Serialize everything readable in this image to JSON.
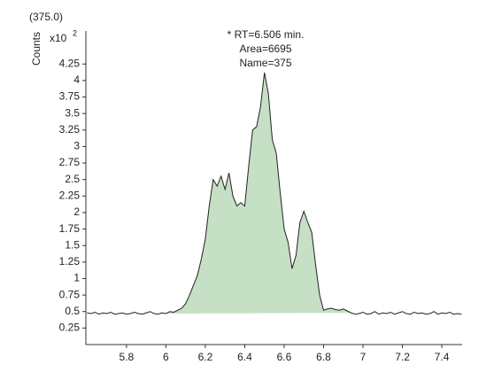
{
  "chart_data": {
    "type": "line",
    "header": "(375.0)",
    "y_label": "Counts",
    "y_multiplier": "x10",
    "y_exponent": "2",
    "annotation": [
      "* RT=6.506 min.",
      "Area=6695",
      "Name=375"
    ],
    "x": [
      5.6,
      5.62,
      5.64,
      5.66,
      5.68,
      5.7,
      5.72,
      5.74,
      5.76,
      5.78,
      5.8,
      5.82,
      5.84,
      5.86,
      5.88,
      5.9,
      5.92,
      5.94,
      5.96,
      5.98,
      6.0,
      6.02,
      6.04,
      6.06,
      6.08,
      6.1,
      6.12,
      6.14,
      6.16,
      6.18,
      6.2,
      6.22,
      6.24,
      6.26,
      6.28,
      6.3,
      6.32,
      6.34,
      6.36,
      6.38,
      6.4,
      6.42,
      6.44,
      6.46,
      6.48,
      6.5,
      6.52,
      6.54,
      6.56,
      6.58,
      6.6,
      6.62,
      6.64,
      6.66,
      6.68,
      6.7,
      6.72,
      6.74,
      6.76,
      6.78,
      6.8,
      6.82,
      6.84,
      6.86,
      6.88,
      6.9,
      6.92,
      6.94,
      6.96,
      6.98,
      7.0,
      7.02,
      7.04,
      7.06,
      7.08,
      7.1,
      7.12,
      7.14,
      7.16,
      7.18,
      7.2,
      7.22,
      7.24,
      7.26,
      7.28,
      7.3,
      7.32,
      7.34,
      7.36,
      7.38,
      7.4,
      7.42,
      7.44,
      7.46,
      7.48,
      7.5
    ],
    "values": [
      0.48,
      0.47,
      0.49,
      0.46,
      0.48,
      0.47,
      0.49,
      0.46,
      0.47,
      0.48,
      0.46,
      0.47,
      0.49,
      0.47,
      0.46,
      0.48,
      0.5,
      0.47,
      0.46,
      0.48,
      0.47,
      0.5,
      0.49,
      0.52,
      0.55,
      0.62,
      0.75,
      0.9,
      1.05,
      1.3,
      1.6,
      2.1,
      2.5,
      2.4,
      2.55,
      2.35,
      2.6,
      2.25,
      2.1,
      2.15,
      2.1,
      2.7,
      3.25,
      3.3,
      3.6,
      4.12,
      3.8,
      3.1,
      2.9,
      2.3,
      1.75,
      1.55,
      1.15,
      1.35,
      1.85,
      2.02,
      1.85,
      1.7,
      1.2,
      0.75,
      0.52,
      0.54,
      0.55,
      0.53,
      0.52,
      0.54,
      0.51,
      0.48,
      0.46,
      0.47,
      0.49,
      0.46,
      0.47,
      0.5,
      0.46,
      0.48,
      0.47,
      0.49,
      0.46,
      0.48,
      0.5,
      0.47,
      0.46,
      0.49,
      0.47,
      0.48,
      0.46,
      0.47,
      0.5,
      0.46,
      0.48,
      0.47,
      0.49,
      0.46,
      0.47,
      0.46
    ],
    "color": "#222222",
    "fill_color": "#c5e0c5",
    "peak_range": [
      6.0,
      6.94
    ],
    "xlim": [
      5.594,
      7.503
    ],
    "ylim": [
      0,
      4.75
    ],
    "xticks": [
      5.8,
      6,
      6.2,
      6.4,
      6.6,
      6.8,
      7,
      7.2,
      7.4
    ],
    "yticks": [
      0.25,
      0.5,
      0.75,
      1,
      1.25,
      1.5,
      1.75,
      2,
      2.25,
      2.5,
      2.75,
      3,
      3.25,
      3.5,
      3.75,
      4,
      4.25
    ]
  }
}
